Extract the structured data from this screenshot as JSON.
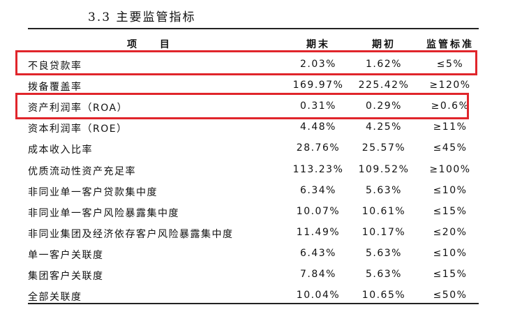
{
  "section_title": "3.3  主要监管指标",
  "table": {
    "headers": [
      "项  目",
      "期末",
      "期初",
      "监管标准"
    ],
    "rows": [
      {
        "name": "不良贷款率",
        "end": "2.03%",
        "begin": "1.62%",
        "standard": "≤5%"
      },
      {
        "name": "拨备覆盖率",
        "end": "169.97%",
        "begin": "225.42%",
        "standard": "≥120%"
      },
      {
        "name": "资产利润率（ROA）",
        "end": "0.31%",
        "begin": "0.29%",
        "standard": "≥0.6%"
      },
      {
        "name": "资本利润率（ROE）",
        "end": "4.48%",
        "begin": "4.25%",
        "standard": "≥11%"
      },
      {
        "name": "成本收入比率",
        "end": "28.76%",
        "begin": "25.57%",
        "standard": "≤45%"
      },
      {
        "name": "优质流动性资产充足率",
        "end": "113.23%",
        "begin": "109.52%",
        "standard": "≥100%"
      },
      {
        "name": "非同业单一客户贷款集中度",
        "end": "6.34%",
        "begin": "5.63%",
        "standard": "≤10%"
      },
      {
        "name": "非同业单一客户风险暴露集中度",
        "end": "10.07%",
        "begin": "10.61%",
        "standard": "≤15%"
      },
      {
        "name": "非同业集团及经济依存客户风险暴露集中度",
        "end": "11.49%",
        "begin": "10.17%",
        "standard": "≤20%"
      },
      {
        "name": "单一客户关联度",
        "end": "6.43%",
        "begin": "5.63%",
        "standard": "≤10%"
      },
      {
        "name": "集团客户关联度",
        "end": "7.84%",
        "begin": "5.63%",
        "standard": "≤15%"
      },
      {
        "name": "全部关联度",
        "end": "10.04%",
        "begin": "10.65%",
        "standard": "≤50%"
      }
    ]
  },
  "highlight_color": "#e0252b"
}
